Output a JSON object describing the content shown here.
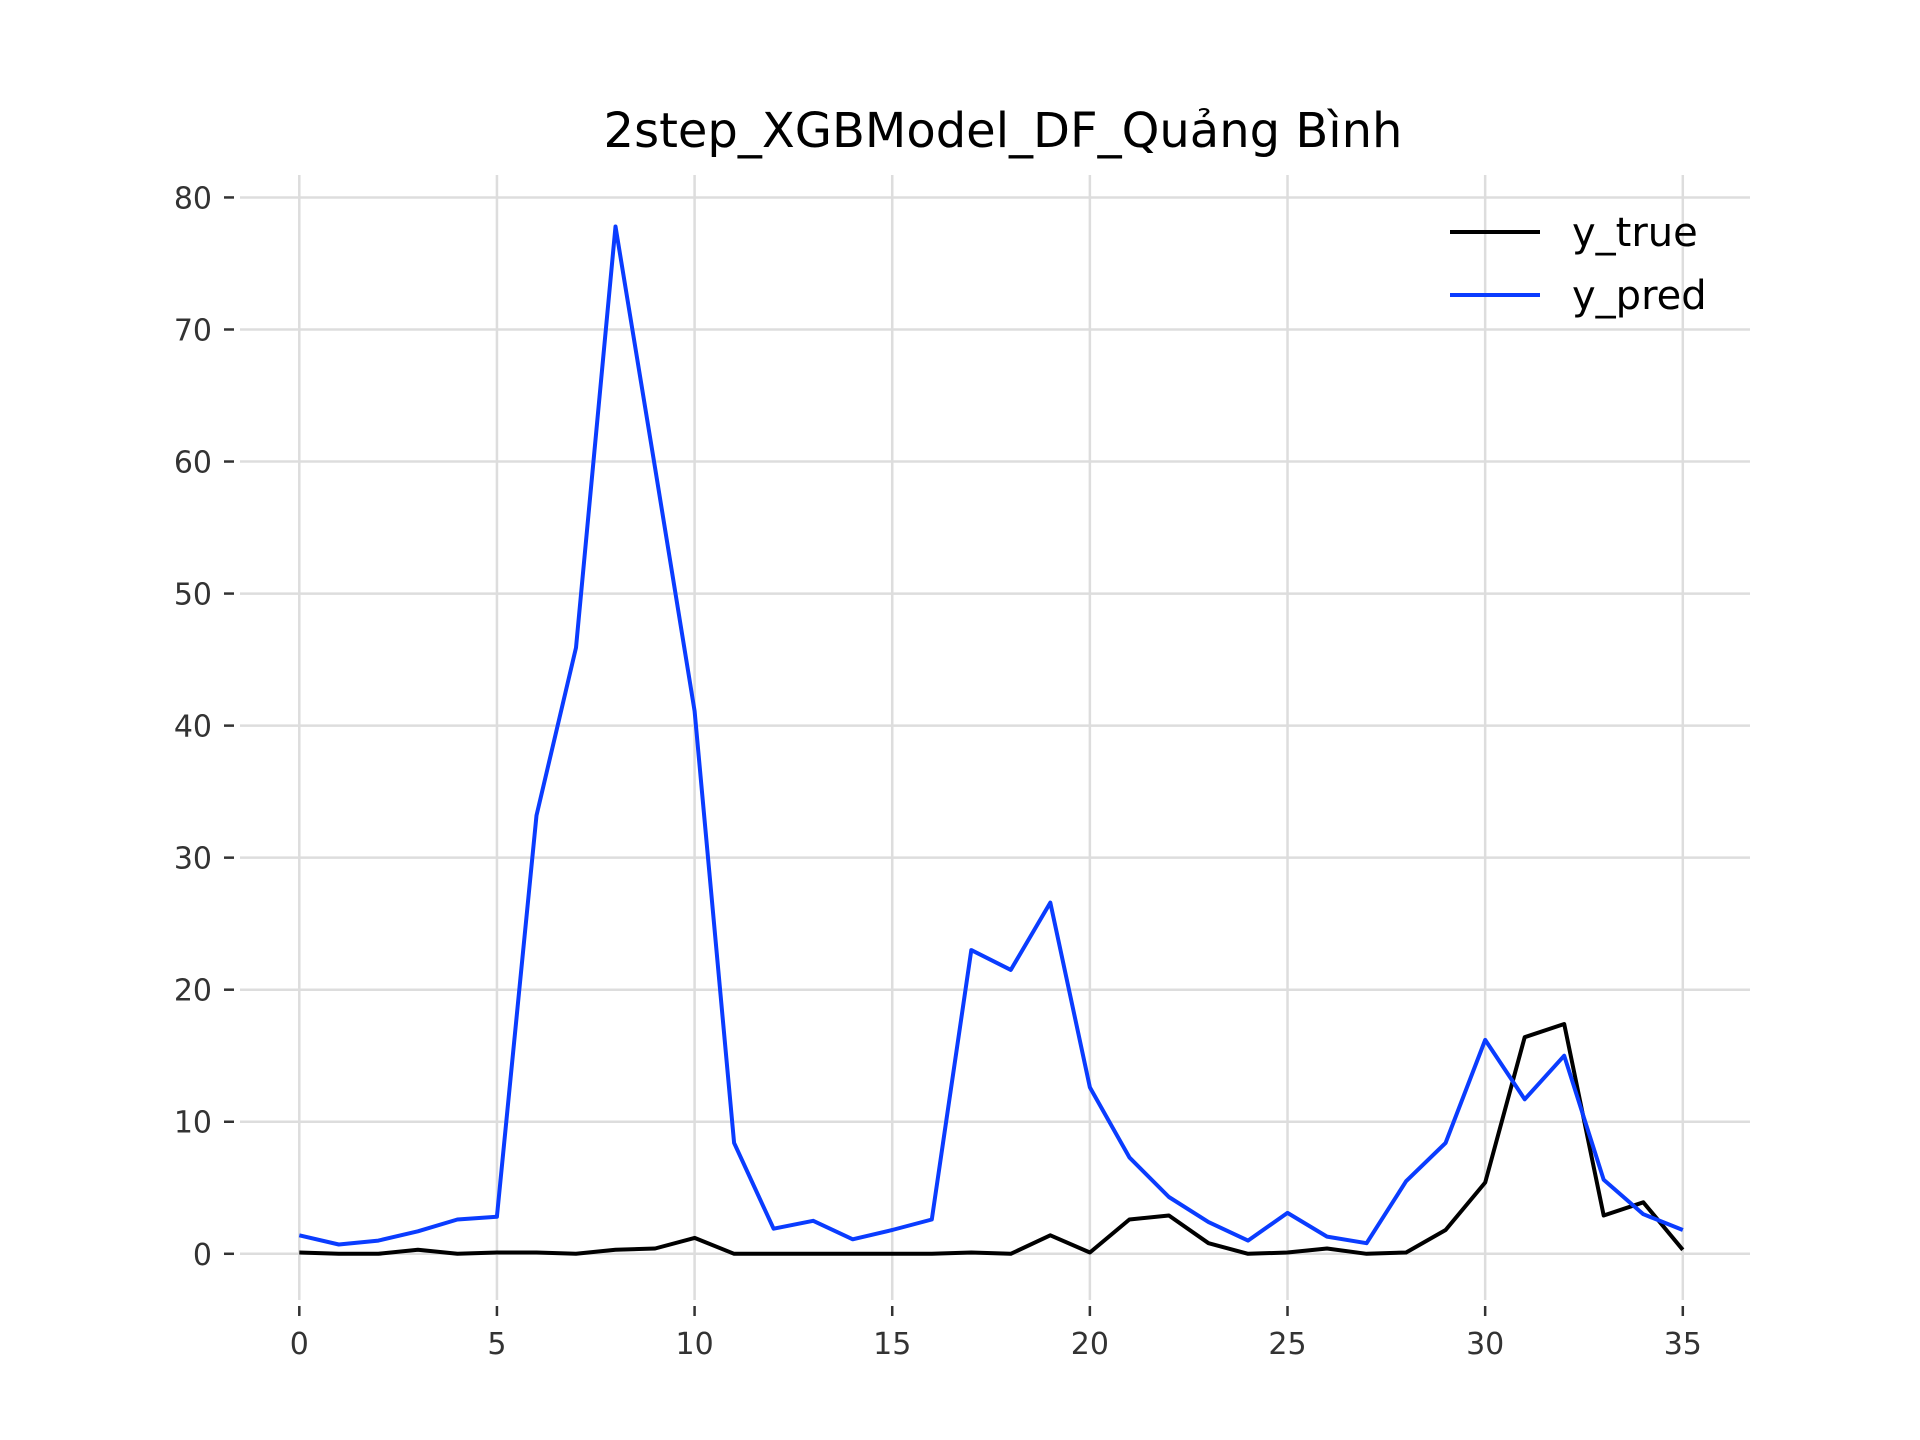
{
  "chart_data": {
    "type": "line",
    "title": "2step_XGBModel_DF_Quảng Bình",
    "xlabel": "",
    "ylabel": "",
    "xlim": [
      -1.5,
      36.7
    ],
    "ylim": [
      -3.5,
      81.7
    ],
    "xticks": [
      0,
      5,
      10,
      15,
      20,
      25,
      30,
      35
    ],
    "yticks": [
      0,
      10,
      20,
      30,
      40,
      50,
      60,
      70,
      80
    ],
    "grid": true,
    "legend_position": "top-right",
    "x": [
      0,
      1,
      2,
      3,
      4,
      5,
      6,
      7,
      8,
      9,
      10,
      11,
      12,
      13,
      14,
      15,
      16,
      17,
      18,
      19,
      20,
      21,
      22,
      23,
      24,
      25,
      26,
      27,
      28,
      29,
      30,
      31,
      32,
      33,
      34,
      35
    ],
    "series": [
      {
        "name": "y_true",
        "color": "#000000",
        "values": [
          0.1,
          0,
          0,
          0.3,
          0,
          0.1,
          0.1,
          0,
          0.3,
          0.4,
          1.2,
          0,
          0,
          0,
          0,
          0,
          0,
          0.1,
          0,
          1.4,
          0.1,
          2.6,
          2.9,
          0.8,
          0,
          0.1,
          0.4,
          0,
          0.1,
          1.8,
          5.4,
          16.4,
          17.4,
          2.9,
          3.9,
          0.3
        ]
      },
      {
        "name": "y_pred",
        "color": "#0a3cff",
        "values": [
          1.4,
          0.7,
          1.0,
          1.7,
          2.6,
          2.8,
          33.2,
          45.9,
          77.8,
          59.5,
          41.1,
          8.4,
          1.9,
          2.5,
          1.1,
          1.8,
          2.6,
          23.0,
          21.5,
          26.6,
          12.6,
          7.3,
          4.3,
          2.4,
          1.0,
          3.1,
          1.3,
          0.8,
          5.5,
          8.4,
          16.2,
          11.7,
          15.0,
          5.6,
          3.0,
          1.8
        ]
      }
    ]
  }
}
